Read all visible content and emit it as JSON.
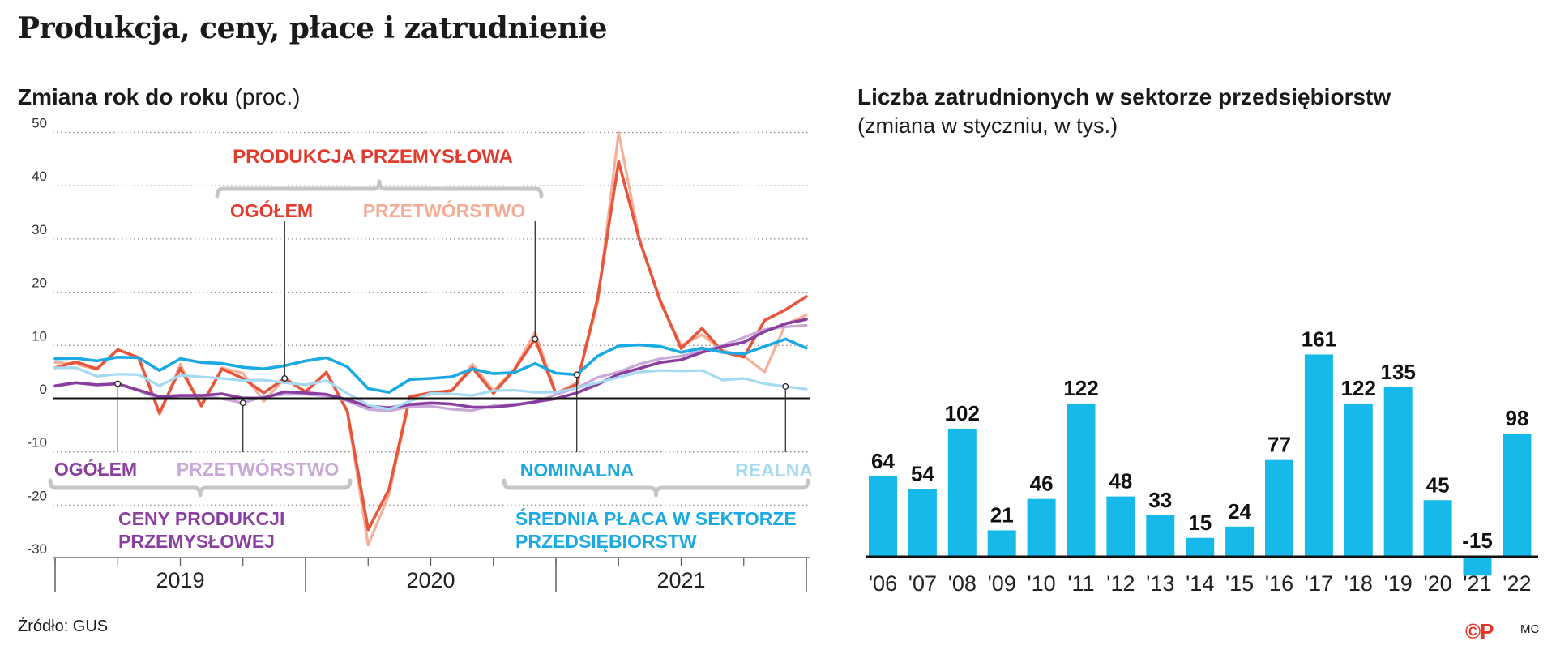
{
  "title": "Produkcja, ceny, płace i zatrudnienie",
  "source": "Źródło: GUS",
  "credit": "©P",
  "author": "MC",
  "chart_data": [
    {
      "type": "line",
      "title": "Zmiana rok do roku",
      "title_unit": "(proc.)",
      "ylim": [
        -30,
        50
      ],
      "yticks": [
        50,
        40,
        30,
        20,
        10,
        0,
        -10,
        -20,
        -30
      ],
      "grid": "dotted horizontal",
      "year_labels": [
        "2019",
        "2020",
        "2021"
      ],
      "x": [
        "2019-01",
        "2019-02",
        "2019-03",
        "2019-04",
        "2019-05",
        "2019-06",
        "2019-07",
        "2019-08",
        "2019-09",
        "2019-10",
        "2019-11",
        "2019-12",
        "2020-01",
        "2020-02",
        "2020-03",
        "2020-04",
        "2020-05",
        "2020-06",
        "2020-07",
        "2020-08",
        "2020-09",
        "2020-10",
        "2020-11",
        "2020-12",
        "2021-01",
        "2021-02",
        "2021-03",
        "2021-04",
        "2021-05",
        "2021-06",
        "2021-07",
        "2021-08",
        "2021-09",
        "2021-10",
        "2021-11",
        "2021-12",
        "2022-01"
      ],
      "annotations": {
        "production_group": "PRODUKCJA PRZEMYSŁOWA",
        "production_total": "OGÓŁEM",
        "production_manufacturing": "PRZETWÓRSTWO",
        "prices_total": "OGÓŁEM",
        "prices_manufacturing": "PRZETWÓRSTWO",
        "prices_group_line1": "CENY PRODUKCJI",
        "prices_group_line2": "PRZEMYSŁOWEJ",
        "wage_nominal": "NOMINALNA",
        "wage_real": "REALNA",
        "wage_group_line1": "ŚREDNIA PŁACA W SEKTORZE",
        "wage_group_line2": "PRZEDSIĘBIORSTW"
      },
      "series": [
        {
          "key": "manufacturing",
          "color": "#f5b09a",
          "values": [
            6.8,
            6.5,
            5.5,
            9.2,
            7.8,
            -3,
            6.5,
            -1.5,
            5.8,
            4.8,
            -0.5,
            3.8,
            1.3,
            5.1,
            -2.5,
            -27.5,
            -18,
            0,
            0.8,
            1.5,
            6.5,
            1.5,
            5.5,
            12.5,
            1,
            3,
            18,
            50,
            30,
            18,
            10,
            12,
            9,
            8,
            5,
            14,
            15.7
          ]
        },
        {
          "key": "production_total",
          "color": "#e8553a",
          "values": [
            5.8,
            6.9,
            5.6,
            9.2,
            7.7,
            -2.7,
            5.7,
            -1.3,
            5.6,
            3.8,
            1.1,
            3.8,
            1.3,
            4.9,
            -2.3,
            -24.6,
            -17,
            0.4,
            1.1,
            1.5,
            5.8,
            1.0,
            5.4,
            11.2,
            0.9,
            2.7,
            18.9,
            44.5,
            29.8,
            18.4,
            9.4,
            13.2,
            8.8,
            7.8,
            14.7,
            16.7,
            19.2
          ]
        },
        {
          "key": "prices_manufacturing",
          "color": "#c9a7d8",
          "values": [
            2.3,
            3,
            2.6,
            2.8,
            1.5,
            0,
            0.5,
            0.5,
            0,
            -0.8,
            0.4,
            0.8,
            0.8,
            0.5,
            -0.4,
            -2,
            -2.3,
            -1.5,
            -1.4,
            -2,
            -2.2,
            -1.3,
            -1,
            -0.8,
            0.8,
            2,
            4,
            5,
            6.5,
            7.5,
            8,
            9,
            10,
            11.5,
            13,
            13.5,
            13.8
          ]
        },
        {
          "key": "prices_total",
          "color": "#8a3fa0",
          "values": [
            2.4,
            3.0,
            2.6,
            2.8,
            1.6,
            0.4,
            0.6,
            0.6,
            0.9,
            0.1,
            0.1,
            1.3,
            1.1,
            0.8,
            -0.2,
            -1.4,
            -1.7,
            -1.1,
            -0.8,
            -1.0,
            -1.6,
            -1.6,
            -1.2,
            -0.6,
            0,
            1.1,
            2.7,
            4.6,
            5.7,
            6.8,
            7.3,
            8.7,
            9.8,
            10.6,
            12.6,
            14.1,
            14.9
          ]
        },
        {
          "key": "wage_real",
          "color": "#a6d9f2",
          "values": [
            5.8,
            5.8,
            4.2,
            4.6,
            4.5,
            2.4,
            4.4,
            4.1,
            3.8,
            3.4,
            3.5,
            3,
            2.6,
            3.4,
            1,
            -1.2,
            -2,
            -0.5,
            1,
            0.9,
            0.6,
            1.5,
            1.6,
            1.2,
            1.2,
            2,
            3,
            4,
            5,
            5.3,
            5.2,
            5.3,
            3.5,
            3.8,
            2.8,
            2.3,
            1.8
          ]
        },
        {
          "key": "wage_nominal",
          "color": "#1aa9e3",
          "values": [
            7.5,
            7.6,
            7.1,
            7.8,
            7.7,
            5.3,
            7.5,
            6.8,
            6.6,
            5.9,
            5.6,
            6.2,
            7.1,
            7.7,
            6.0,
            1.9,
            1.2,
            3.6,
            3.8,
            4.1,
            5.6,
            4.7,
            4.9,
            6.6,
            4.8,
            4.5,
            8.0,
            9.9,
            10.1,
            9.8,
            8.7,
            9.5,
            8.7,
            8.4,
            9.8,
            11.2,
            9.5
          ]
        }
      ]
    },
    {
      "type": "bar",
      "title": "Liczba zatrudnionych w sektorze przedsiębiorstw",
      "subtitle": "(zmiana w styczniu, w tys.)",
      "color": "#16b9ea",
      "categories": [
        "'06",
        "'07",
        "'08",
        "'09",
        "'10",
        "'11",
        "'12",
        "'13",
        "'14",
        "'15",
        "'16",
        "'17",
        "'18",
        "'19",
        "'20",
        "'21",
        "'22"
      ],
      "values": [
        64,
        54,
        102,
        21,
        46,
        122,
        48,
        33,
        15,
        24,
        77,
        161,
        122,
        135,
        45,
        -15,
        98
      ]
    }
  ]
}
